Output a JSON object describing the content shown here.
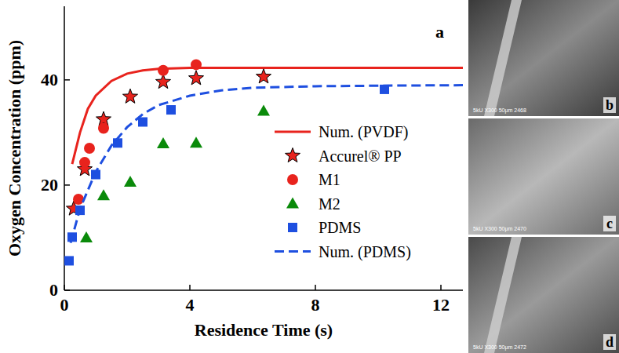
{
  "chart_data": {
    "type": "scatter",
    "panel": "a",
    "x_label": "Residence Time (s)",
    "y_label": "Oxygen Concentration (ppm)",
    "xlim": [
      0,
      12.7
    ],
    "xticks": [
      0,
      4,
      8,
      12
    ],
    "ylim": [
      0,
      54
    ],
    "yticks": [
      0,
      20,
      40
    ],
    "legend": "right",
    "grid": false,
    "series": [
      {
        "name": "Num. (PVDF)",
        "type": "line",
        "line_style": "solid",
        "color": "#e8231d",
        "x": [
          0.25,
          0.5,
          0.75,
          1,
          1.5,
          2,
          2.5,
          3,
          4,
          5,
          6,
          8,
          10,
          12.7
        ],
        "values": [
          24,
          30,
          34.5,
          37,
          39.8,
          41.2,
          41.8,
          42.1,
          42.3,
          42.3,
          42.3,
          42.3,
          42.3,
          42.3
        ]
      },
      {
        "name": "Accurel® PP",
        "type": "scatter",
        "marker": "star",
        "color": "#e8231d",
        "x": [
          0.3,
          0.65,
          1.25,
          2.1,
          3.15,
          4.2,
          6.35
        ],
        "values": [
          15.5,
          23,
          32.5,
          36.8,
          39.6,
          40.3,
          40.6
        ]
      },
      {
        "name": "M1",
        "type": "scatter",
        "marker": "circle",
        "color": "#e8231d",
        "x": [
          0.45,
          0.65,
          0.8,
          1.25,
          3.15,
          4.2
        ],
        "values": [
          17.3,
          24.3,
          27,
          30.8,
          41.8,
          42.9
        ]
      },
      {
        "name": "M2",
        "type": "scatter",
        "marker": "triangle",
        "color": "#0a8a0a",
        "x": [
          0.7,
          1.25,
          2.1,
          3.15,
          4.2,
          6.35
        ],
        "values": [
          10,
          18,
          20.6,
          27.9,
          28,
          34.1
        ]
      },
      {
        "name": "PDMS",
        "type": "scatter",
        "marker": "square",
        "color": "#1e4fe0",
        "x": [
          0.15,
          0.25,
          0.5,
          1.0,
          1.7,
          2.5,
          3.4,
          10.2
        ],
        "values": [
          5.6,
          10.1,
          15.2,
          22,
          28,
          32,
          34.3,
          38.2
        ]
      },
      {
        "name": "Num. (PDMS)",
        "type": "line",
        "line_style": "dashed",
        "color": "#1e4fe0",
        "x": [
          0.2,
          0.5,
          1,
          1.5,
          2,
          2.5,
          3,
          4,
          5,
          6,
          8,
          10,
          12.7
        ],
        "values": [
          9,
          15.5,
          22.5,
          27.5,
          31,
          33.5,
          35.2,
          37,
          38,
          38.5,
          38.8,
          38.9,
          39
        ]
      }
    ]
  },
  "images": [
    {
      "label": "b",
      "caption": "5kU  X300  50μm  2468"
    },
    {
      "label": "c",
      "caption": "5kU  X300  50μm  2470"
    },
    {
      "label": "d",
      "caption": "5kU  X300  50μm  2472"
    }
  ]
}
